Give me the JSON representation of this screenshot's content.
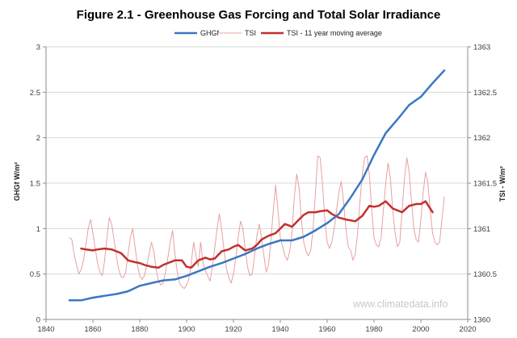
{
  "chart_data": {
    "type": "line",
    "title": "Figure 2.1 - Greenhouse Gas Forcing and Total Solar Irradiance",
    "ylabel_left": "GHGf W/m²",
    "ylabel_right": "TSI - W/m²",
    "xlim": [
      1840,
      2020
    ],
    "xticks": [
      "1840",
      "1860",
      "1880",
      "1900",
      "1920",
      "1940",
      "1960",
      "1980",
      "2000",
      "2020"
    ],
    "ylim_left": [
      0,
      3
    ],
    "yticks_left": [
      "0",
      "0.5",
      "1",
      "1.5",
      "2",
      "2.5",
      "3"
    ],
    "ylim_right": [
      1360,
      1363
    ],
    "yticks_right": [
      "1360",
      "1360.5",
      "1361",
      "1361.5",
      "1362",
      "1362.5",
      "1363"
    ],
    "grid": "horizontal",
    "legend_position": "top-center",
    "watermark": "www.climatedata.info",
    "series": [
      {
        "name": "GHGf",
        "axis": "left",
        "color": "#3a78c2",
        "x": [
          1850,
          1855,
          1860,
          1865,
          1870,
          1875,
          1880,
          1885,
          1890,
          1895,
          1900,
          1905,
          1910,
          1915,
          1920,
          1925,
          1930,
          1935,
          1940,
          1945,
          1950,
          1955,
          1960,
          1965,
          1970,
          1975,
          1980,
          1985,
          1990,
          1995,
          2000,
          2005,
          2010
        ],
        "values": [
          0.21,
          0.21,
          0.24,
          0.26,
          0.28,
          0.31,
          0.37,
          0.4,
          0.43,
          0.44,
          0.48,
          0.53,
          0.58,
          0.62,
          0.67,
          0.72,
          0.78,
          0.83,
          0.87,
          0.87,
          0.91,
          0.98,
          1.06,
          1.16,
          1.34,
          1.54,
          1.81,
          2.05,
          2.2,
          2.36,
          2.45,
          2.6,
          2.74
        ]
      },
      {
        "name": "TSI",
        "axis": "right",
        "color": "#e8a0a0",
        "x": [
          1850,
          1851,
          1852,
          1853,
          1854,
          1855,
          1856,
          1857,
          1858,
          1859,
          1860,
          1861,
          1862,
          1863,
          1864,
          1865,
          1866,
          1867,
          1868,
          1869,
          1870,
          1871,
          1872,
          1873,
          1874,
          1875,
          1876,
          1877,
          1878,
          1879,
          1880,
          1881,
          1882,
          1883,
          1884,
          1885,
          1886,
          1887,
          1888,
          1889,
          1890,
          1891,
          1892,
          1893,
          1894,
          1895,
          1896,
          1897,
          1898,
          1899,
          1900,
          1901,
          1902,
          1903,
          1904,
          1905,
          1906,
          1907,
          1908,
          1909,
          1910,
          1911,
          1912,
          1913,
          1914,
          1915,
          1916,
          1917,
          1918,
          1919,
          1920,
          1921,
          1922,
          1923,
          1924,
          1925,
          1926,
          1927,
          1928,
          1929,
          1930,
          1931,
          1932,
          1933,
          1934,
          1935,
          1936,
          1937,
          1938,
          1939,
          1940,
          1941,
          1942,
          1943,
          1944,
          1945,
          1946,
          1947,
          1948,
          1949,
          1950,
          1951,
          1952,
          1953,
          1954,
          1955,
          1956,
          1957,
          1958,
          1959,
          1960,
          1961,
          1962,
          1963,
          1964,
          1965,
          1966,
          1967,
          1968,
          1969,
          1970,
          1971,
          1972,
          1973,
          1974,
          1975,
          1976,
          1977,
          1978,
          1979,
          1980,
          1981,
          1982,
          1983,
          1984,
          1985,
          1986,
          1987,
          1988,
          1989,
          1990,
          1991,
          1992,
          1993,
          1994,
          1995,
          1996,
          1997,
          1998,
          1999,
          2000,
          2001,
          2002,
          2003,
          2004,
          2005,
          2006,
          2007,
          2008,
          2009,
          2010
        ],
        "values": [
          1360.9,
          1360.88,
          1360.72,
          1360.6,
          1360.5,
          1360.55,
          1360.65,
          1360.82,
          1361.0,
          1361.1,
          1360.95,
          1360.78,
          1360.62,
          1360.52,
          1360.48,
          1360.65,
          1360.9,
          1361.12,
          1361.05,
          1360.88,
          1360.7,
          1360.55,
          1360.47,
          1360.46,
          1360.52,
          1360.72,
          1360.9,
          1361.0,
          1360.8,
          1360.6,
          1360.48,
          1360.44,
          1360.48,
          1360.6,
          1360.72,
          1360.85,
          1360.75,
          1360.55,
          1360.42,
          1360.38,
          1360.4,
          1360.52,
          1360.68,
          1360.85,
          1360.98,
          1360.72,
          1360.52,
          1360.4,
          1360.36,
          1360.34,
          1360.38,
          1360.45,
          1360.62,
          1360.85,
          1360.7,
          1360.58,
          1360.85,
          1360.62,
          1360.54,
          1360.48,
          1360.42,
          1360.58,
          1360.78,
          1361.0,
          1361.16,
          1360.98,
          1360.76,
          1360.56,
          1360.46,
          1360.4,
          1360.5,
          1360.68,
          1360.9,
          1361.08,
          1361.0,
          1360.78,
          1360.58,
          1360.48,
          1360.5,
          1360.7,
          1360.92,
          1361.05,
          1360.9,
          1360.7,
          1360.52,
          1360.6,
          1360.88,
          1361.2,
          1361.48,
          1361.2,
          1360.9,
          1360.8,
          1360.7,
          1360.65,
          1360.75,
          1360.95,
          1361.35,
          1361.6,
          1361.45,
          1361.1,
          1360.85,
          1360.75,
          1360.7,
          1360.76,
          1361.0,
          1361.4,
          1361.8,
          1361.78,
          1361.5,
          1361.1,
          1360.85,
          1360.78,
          1360.85,
          1361.0,
          1361.2,
          1361.4,
          1361.52,
          1361.3,
          1361.0,
          1360.8,
          1360.76,
          1360.65,
          1360.72,
          1360.95,
          1361.3,
          1361.6,
          1361.78,
          1361.8,
          1361.6,
          1361.2,
          1360.9,
          1360.82,
          1360.8,
          1360.9,
          1361.2,
          1361.5,
          1361.72,
          1361.55,
          1361.2,
          1360.95,
          1360.8,
          1360.85,
          1361.2,
          1361.55,
          1361.78,
          1361.62,
          1361.3,
          1361.0,
          1360.88,
          1360.85,
          1361.1,
          1361.4,
          1361.62,
          1361.5,
          1361.2,
          1360.95,
          1360.85,
          1360.82,
          1360.85,
          1361.1,
          1361.35
        ]
      },
      {
        "name": "TSI - 11 year moving average",
        "axis": "right",
        "color": "#c0302f",
        "x": [
          1855,
          1857,
          1860,
          1862,
          1865,
          1868,
          1870,
          1872,
          1875,
          1878,
          1880,
          1882,
          1885,
          1888,
          1890,
          1892,
          1895,
          1898,
          1900,
          1902,
          1905,
          1908,
          1910,
          1912,
          1915,
          1918,
          1920,
          1922,
          1925,
          1928,
          1930,
          1932,
          1935,
          1938,
          1940,
          1942,
          1945,
          1948,
          1950,
          1952,
          1955,
          1957,
          1960,
          1962,
          1965,
          1968,
          1970,
          1972,
          1975,
          1978,
          1980,
          1982,
          1985,
          1988,
          1990,
          1992,
          1995,
          1998,
          2000,
          2002,
          2005
        ],
        "values": [
          1360.78,
          1360.77,
          1360.76,
          1360.77,
          1360.78,
          1360.77,
          1360.75,
          1360.73,
          1360.65,
          1360.63,
          1360.62,
          1360.6,
          1360.58,
          1360.57,
          1360.6,
          1360.62,
          1360.65,
          1360.65,
          1360.58,
          1360.57,
          1360.65,
          1360.68,
          1360.66,
          1360.67,
          1360.75,
          1360.77,
          1360.8,
          1360.82,
          1360.76,
          1360.78,
          1360.82,
          1360.88,
          1360.92,
          1360.95,
          1361.0,
          1361.05,
          1361.02,
          1361.1,
          1361.15,
          1361.18,
          1361.18,
          1361.19,
          1361.2,
          1361.16,
          1361.12,
          1361.1,
          1361.09,
          1361.08,
          1361.14,
          1361.25,
          1361.24,
          1361.25,
          1361.3,
          1361.22,
          1361.2,
          1361.18,
          1361.25,
          1361.27,
          1361.27,
          1361.3,
          1361.18
        ]
      }
    ]
  }
}
